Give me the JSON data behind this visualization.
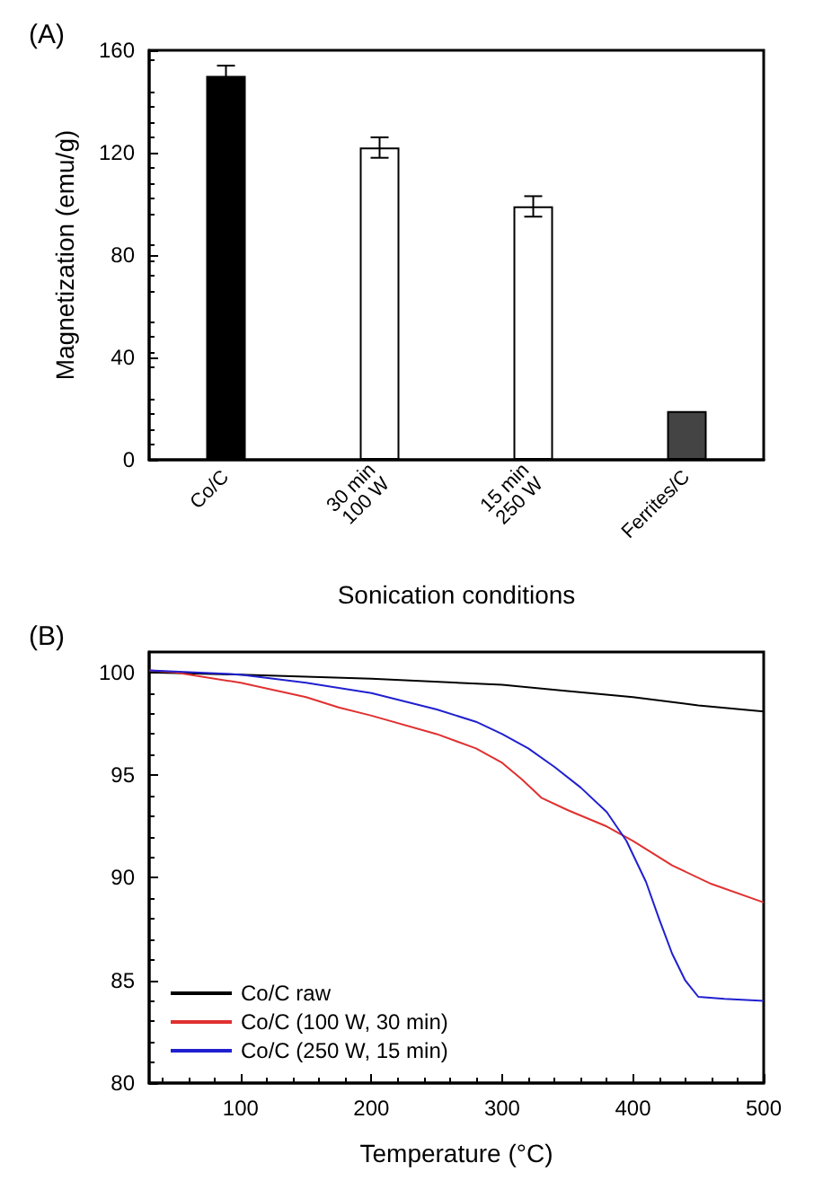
{
  "chart_data": [
    {
      "type": "bar",
      "annotations": [
        "(A)"
      ],
      "xlabel": "Sonication conditions",
      "ylabel": "Magnetization (emu/g)",
      "categories": [
        "Co/C",
        "30 min\n100 W",
        "15 min\n250 W",
        "Ferrites/C"
      ],
      "values": [
        150,
        122,
        99,
        19
      ],
      "errors": [
        4,
        4,
        4,
        null
      ],
      "colors": [
        "#000000",
        "#ffffff",
        "#ffffff",
        "#444444"
      ],
      "ylim": [
        0,
        160
      ],
      "yticks": [
        0,
        40,
        80,
        120,
        160
      ],
      "grid": false,
      "legend": false
    },
    {
      "type": "line",
      "annotations": [
        "(B)"
      ],
      "xlabel": "Temperature (°C)",
      "xlim": [
        30,
        500
      ],
      "xticks": [
        100,
        200,
        300,
        400,
        500
      ],
      "ylim": [
        80,
        101
      ],
      "yticks": [
        80,
        85,
        90,
        95,
        100
      ],
      "grid": false,
      "legend": "bottom left",
      "marker": "none",
      "line_style": "solid",
      "series": [
        {
          "name": "Co/C raw",
          "color": "#000000",
          "x": [
            30,
            100,
            200,
            300,
            350,
            400,
            450,
            500
          ],
          "values": [
            100,
            99.9,
            99.7,
            99.4,
            99.1,
            98.8,
            98.4,
            98.1
          ]
        },
        {
          "name": "Co/C (100 W, 30 min)",
          "color": "#e03030",
          "x": [
            30,
            50,
            100,
            150,
            175,
            200,
            250,
            280,
            300,
            315,
            330,
            350,
            380,
            400,
            430,
            460,
            500
          ],
          "values": [
            100.1,
            100,
            99.5,
            98.8,
            98.3,
            97.9,
            97.0,
            96.3,
            95.6,
            94.8,
            93.9,
            93.3,
            92.5,
            91.8,
            90.6,
            89.7,
            88.8
          ]
        },
        {
          "name": "Co/C (250 W, 15 min)",
          "color": "#2020d0",
          "x": [
            30,
            100,
            150,
            200,
            250,
            280,
            300,
            320,
            340,
            360,
            380,
            395,
            410,
            420,
            430,
            440,
            450,
            470,
            500
          ],
          "values": [
            100.1,
            99.9,
            99.5,
            99.0,
            98.2,
            97.6,
            97.0,
            96.3,
            95.4,
            94.4,
            93.2,
            91.8,
            89.8,
            88.0,
            86.3,
            85.0,
            84.2,
            84.1,
            84.0
          ]
        }
      ]
    }
  ]
}
